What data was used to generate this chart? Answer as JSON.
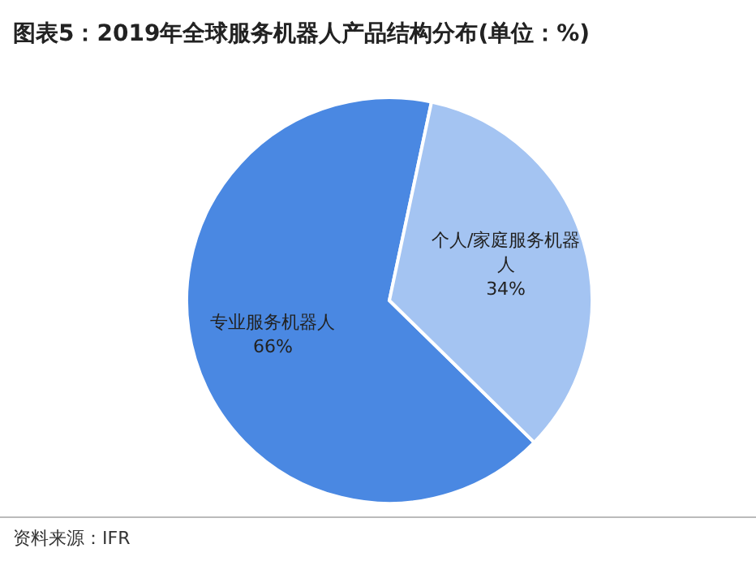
{
  "chart_data": {
    "type": "pie",
    "title": "图表5：2019年全球服务机器人产品结构分布(单位：%)",
    "categories": [
      "专业服务机器人",
      "个人/家庭服务机器人"
    ],
    "values": [
      66,
      34
    ],
    "value_labels": [
      "66%",
      "34%"
    ],
    "colors": [
      "#4a88e2",
      "#a4c4f2"
    ],
    "legend": false,
    "annotations": [
      "资料来源：IFR"
    ]
  }
}
